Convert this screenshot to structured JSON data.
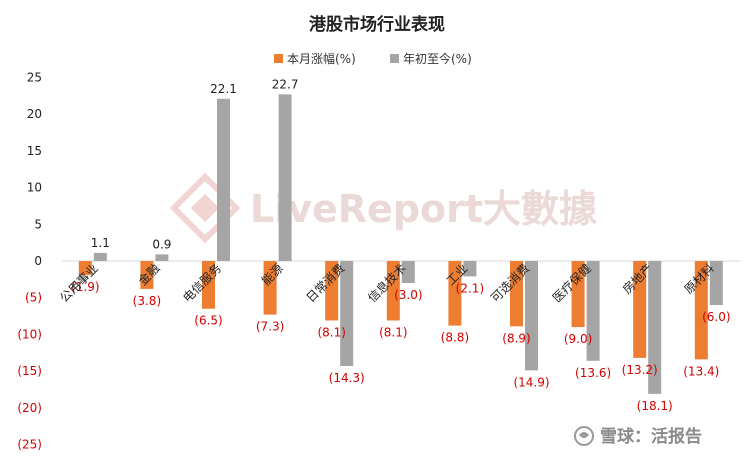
{
  "chart_data": {
    "type": "bar",
    "title": "港股市场行业表现",
    "categories": [
      "公用事业",
      "金融",
      "电信服务",
      "能源",
      "日常消费",
      "信息技术",
      "工业",
      "可选消费",
      "医疗保健",
      "房地产",
      "原材料"
    ],
    "series": [
      {
        "name": "本月涨幅(%)",
        "color": "#ed7d31",
        "values": [
          -1.9,
          -3.8,
          -6.5,
          -7.3,
          -8.1,
          -8.1,
          -8.8,
          -8.9,
          -9.0,
          -13.2,
          -13.4
        ],
        "labels": [
          "(1.9)",
          "(3.8)",
          "(6.5)",
          "(7.3)",
          "(8.1)",
          "(8.1)",
          "(8.8)",
          "(8.9)",
          "(9.0)",
          "(13.2)",
          "(13.4)"
        ]
      },
      {
        "name": "年初至今(%)",
        "color": "#a5a5a5",
        "values": [
          1.1,
          0.9,
          22.1,
          22.7,
          -14.3,
          -3.0,
          -2.1,
          -14.9,
          -13.6,
          -18.1,
          -6.0
        ],
        "labels": [
          "1.1",
          "0.9",
          "22.1",
          "22.7",
          "(14.3)",
          "(3.0)",
          "(2.1)",
          "(14.9)",
          "(13.6)",
          "(18.1)",
          "(6.0)"
        ]
      }
    ],
    "ylim": [
      -25,
      25
    ],
    "yticks": [
      25,
      20,
      15,
      10,
      5,
      0,
      -5,
      -10,
      -15,
      -20,
      -25
    ],
    "ytick_labels": [
      "25",
      "20",
      "15",
      "10",
      "5",
      "0",
      "(5)",
      "(10)",
      "(15)",
      "(20)",
      "(25)"
    ],
    "legend_position": "top-center",
    "grid": false,
    "negative_label_color": "#d40000",
    "positive_label_color": "#222222"
  },
  "watermark": "LiveReport大數據",
  "footer": "雪球：活报告"
}
